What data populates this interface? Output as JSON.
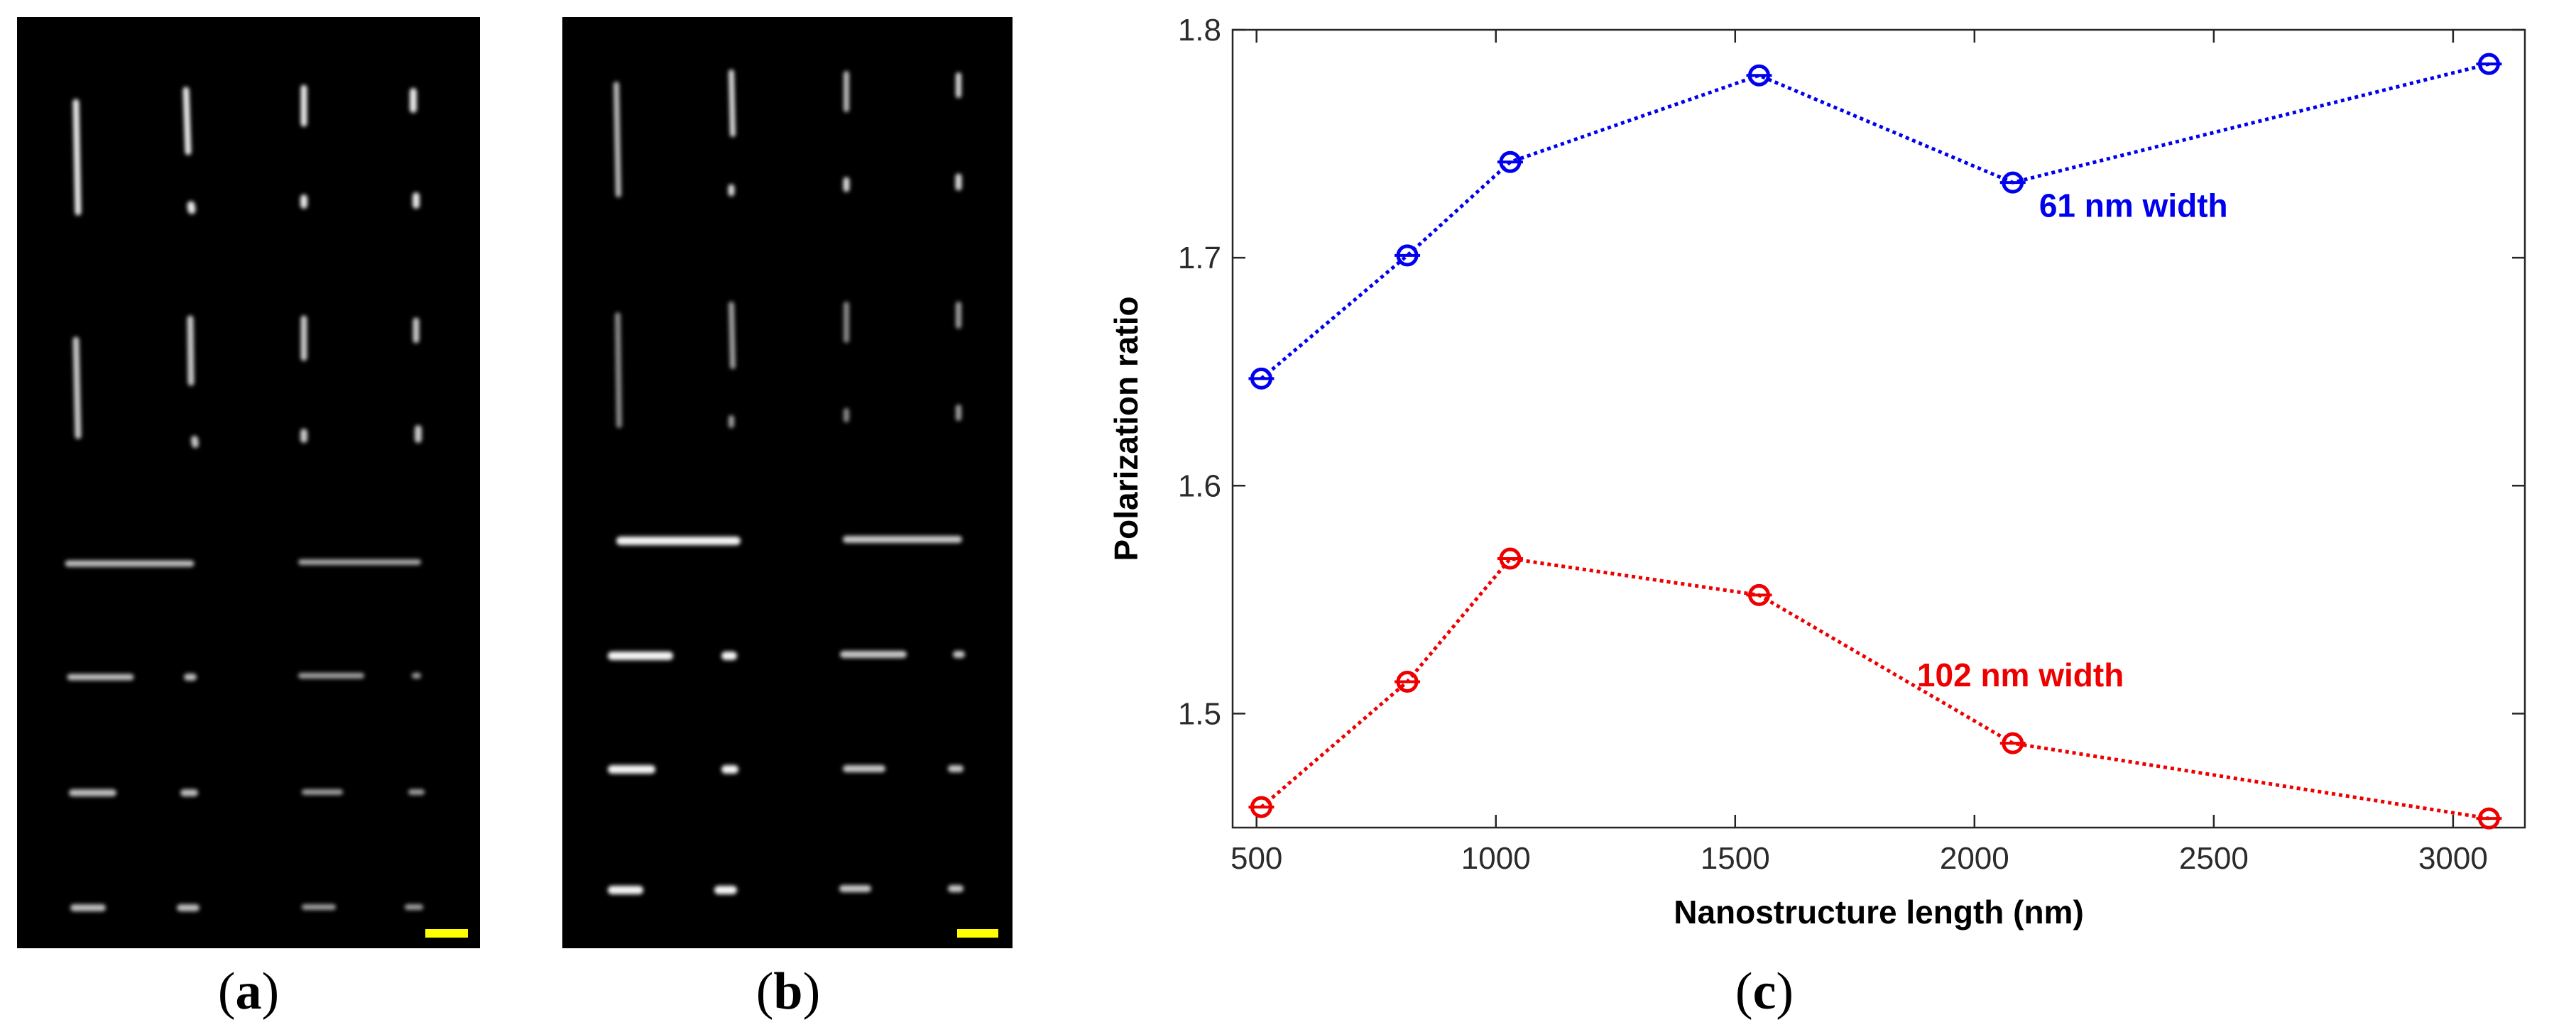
{
  "panels": {
    "a": {
      "caption": "a"
    },
    "b": {
      "caption": "b"
    },
    "c": {
      "caption": "c"
    }
  },
  "colors": {
    "blue_series": "#0000ee",
    "red_series": "#ee0000",
    "scale_bar": "#ffff00",
    "image_background": "#000000"
  },
  "chart_data": {
    "type": "line",
    "title": "",
    "xlabel": "Nanostructure length (nm)",
    "ylabel": "Polarization ratio",
    "xlim": [
      450,
      3150
    ],
    "ylim": [
      1.45,
      1.8
    ],
    "xticks": [
      500,
      1000,
      1500,
      2000,
      2500,
      3000
    ],
    "yticks": [
      1.5,
      1.6,
      1.7,
      1.8
    ],
    "xtick_labels": [
      "500",
      "1000",
      "1500",
      "2000",
      "2500",
      "3000"
    ],
    "ytick_labels": [
      "1.5",
      "1.6",
      "1.7",
      "1.8"
    ],
    "grid": false,
    "series": [
      {
        "name": "61 nm width",
        "color": "#0000ee",
        "x": [
          510,
          815,
          1030,
          1550,
          2080,
          3075
        ],
        "y": [
          1.647,
          1.701,
          1.742,
          1.78,
          1.733,
          1.785
        ]
      },
      {
        "name": "102 nm width",
        "color": "#ee0000",
        "x": [
          510,
          815,
          1030,
          1550,
          2080,
          3075
        ],
        "y": [
          1.459,
          1.514,
          1.568,
          1.552,
          1.487,
          1.454
        ]
      }
    ]
  }
}
